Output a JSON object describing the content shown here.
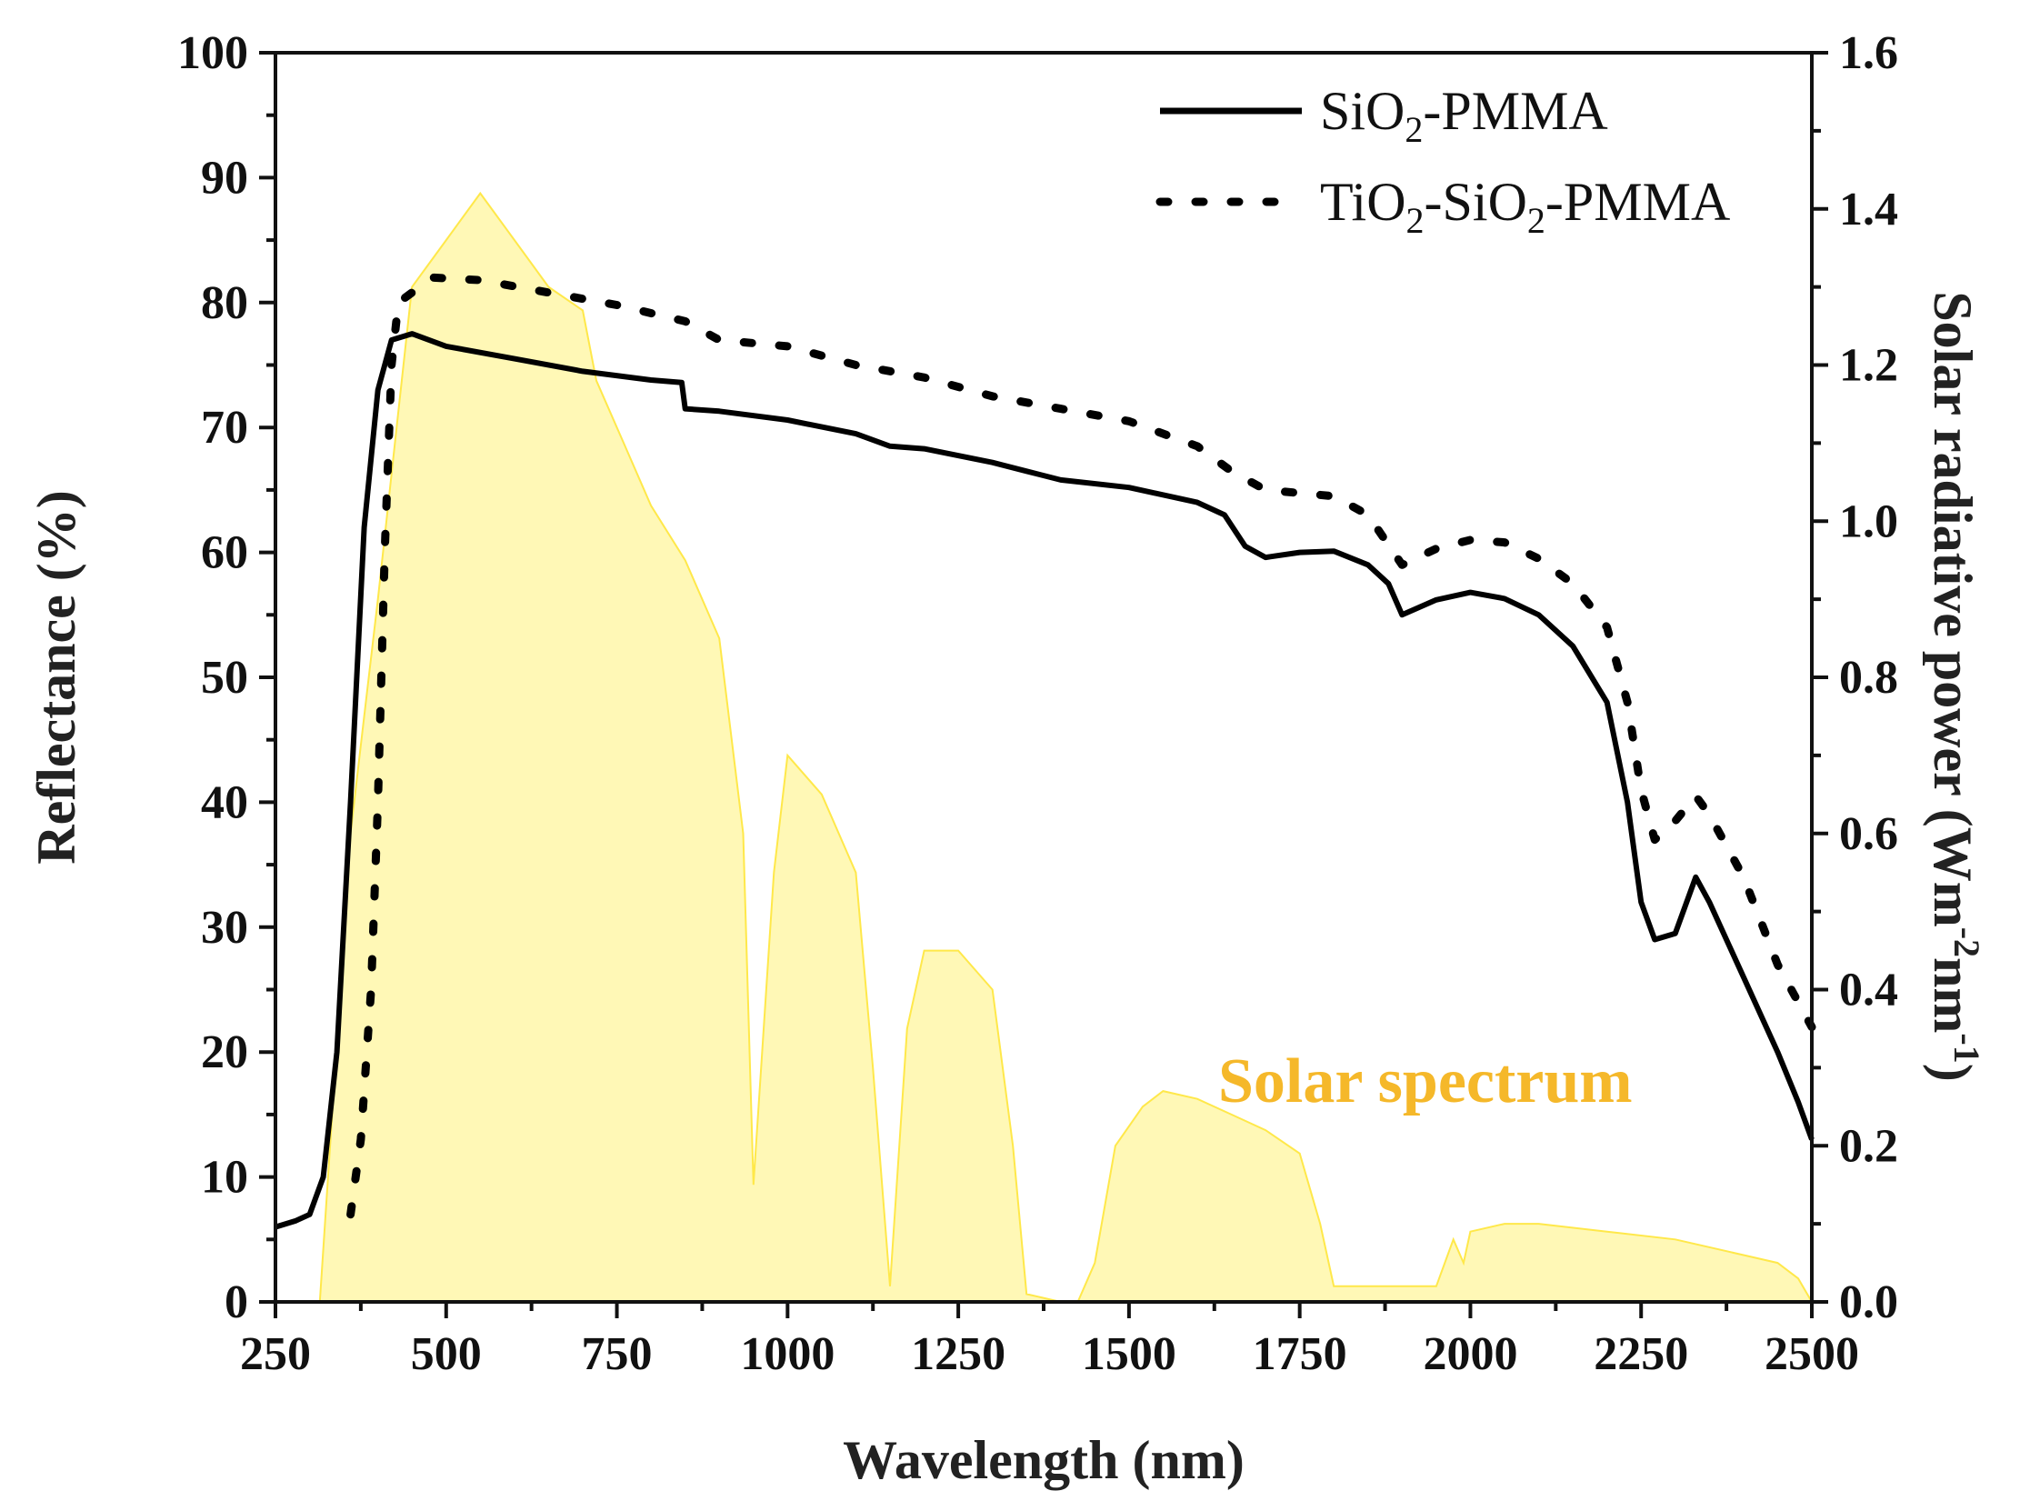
{
  "chart_data": {
    "type": "line",
    "xlabel": "Wavelength (nm)",
    "ylabel": "Reflectance (%)",
    "y2label": "Solar radiative power (Wm-2nm-1)",
    "xlim": [
      250,
      2500
    ],
    "ylim": [
      0,
      100
    ],
    "y2lim": [
      0.0,
      1.6
    ],
    "x_ticks": [
      250,
      500,
      750,
      1000,
      1250,
      1500,
      1750,
      2000,
      2250,
      2500
    ],
    "y_ticks": [
      0,
      10,
      20,
      30,
      40,
      50,
      60,
      70,
      80,
      90,
      100
    ],
    "y2_ticks": [
      "0.0",
      "0.2",
      "0.4",
      "0.6",
      "0.8",
      "1.0",
      "1.2",
      "1.4",
      "1.6"
    ],
    "grid": false,
    "legend_position": "top-right",
    "annotation": "Solar spectrum",
    "series": [
      {
        "name": "SiO2-PMMA",
        "style": "solid",
        "color": "#000000",
        "axis": "left",
        "points": [
          [
            250,
            6
          ],
          [
            280,
            6.5
          ],
          [
            300,
            7
          ],
          [
            320,
            10
          ],
          [
            340,
            20
          ],
          [
            360,
            40
          ],
          [
            380,
            62
          ],
          [
            400,
            73
          ],
          [
            420,
            77
          ],
          [
            450,
            77.5
          ],
          [
            500,
            76.5
          ],
          [
            600,
            75.5
          ],
          [
            700,
            74.5
          ],
          [
            800,
            73.8
          ],
          [
            845,
            73.6
          ],
          [
            850,
            71.5
          ],
          [
            900,
            71.3
          ],
          [
            1000,
            70.6
          ],
          [
            1100,
            69.5
          ],
          [
            1150,
            68.5
          ],
          [
            1200,
            68.3
          ],
          [
            1300,
            67.2
          ],
          [
            1350,
            66.5
          ],
          [
            1400,
            65.8
          ],
          [
            1500,
            65.2
          ],
          [
            1600,
            64
          ],
          [
            1640,
            63
          ],
          [
            1670,
            60.5
          ],
          [
            1700,
            59.6
          ],
          [
            1750,
            60
          ],
          [
            1800,
            60.1
          ],
          [
            1850,
            59
          ],
          [
            1880,
            57.5
          ],
          [
            1900,
            55
          ],
          [
            1950,
            56.2
          ],
          [
            2000,
            56.8
          ],
          [
            2050,
            56.3
          ],
          [
            2100,
            55
          ],
          [
            2150,
            52.5
          ],
          [
            2200,
            48
          ],
          [
            2230,
            40
          ],
          [
            2250,
            32
          ],
          [
            2270,
            29
          ],
          [
            2300,
            29.5
          ],
          [
            2330,
            34
          ],
          [
            2350,
            32
          ],
          [
            2400,
            26
          ],
          [
            2450,
            20
          ],
          [
            2480,
            16
          ],
          [
            2500,
            13
          ]
        ]
      },
      {
        "name": "TiO2-SiO2-PMMA",
        "style": "dotted",
        "color": "#000000",
        "axis": "left",
        "points": [
          [
            360,
            7
          ],
          [
            375,
            13
          ],
          [
            390,
            25
          ],
          [
            400,
            40
          ],
          [
            410,
            60
          ],
          [
            420,
            75
          ],
          [
            430,
            80
          ],
          [
            480,
            82
          ],
          [
            550,
            81.8
          ],
          [
            650,
            80.8
          ],
          [
            750,
            79.8
          ],
          [
            850,
            78.5
          ],
          [
            900,
            77
          ],
          [
            1000,
            76.5
          ],
          [
            1100,
            75
          ],
          [
            1200,
            74
          ],
          [
            1300,
            72.5
          ],
          [
            1400,
            71.5
          ],
          [
            1500,
            70.5
          ],
          [
            1600,
            68.5
          ],
          [
            1650,
            66.5
          ],
          [
            1700,
            65
          ],
          [
            1800,
            64.5
          ],
          [
            1850,
            63
          ],
          [
            1900,
            59
          ],
          [
            1950,
            60.3
          ],
          [
            2000,
            61
          ],
          [
            2050,
            60.8
          ],
          [
            2100,
            59.5
          ],
          [
            2150,
            57.5
          ],
          [
            2200,
            54
          ],
          [
            2230,
            48
          ],
          [
            2250,
            41
          ],
          [
            2270,
            37
          ],
          [
            2300,
            38.5
          ],
          [
            2330,
            40.5
          ],
          [
            2350,
            39
          ],
          [
            2400,
            34
          ],
          [
            2450,
            27
          ],
          [
            2500,
            22
          ]
        ]
      },
      {
        "name": "Solar spectrum",
        "style": "fill",
        "color": "#fff27a",
        "axis": "right",
        "points": [
          [
            300,
            0
          ],
          [
            315,
            0
          ],
          [
            330,
            0.2
          ],
          [
            345,
            0.4
          ],
          [
            360,
            0.6
          ],
          [
            380,
            0.75
          ],
          [
            400,
            0.9
          ],
          [
            425,
            1.1
          ],
          [
            450,
            1.3
          ],
          [
            500,
            1.36
          ],
          [
            550,
            1.42
          ],
          [
            600,
            1.36
          ],
          [
            650,
            1.3
          ],
          [
            700,
            1.27
          ],
          [
            720,
            1.18
          ],
          [
            760,
            1.1
          ],
          [
            800,
            1.02
          ],
          [
            850,
            0.95
          ],
          [
            900,
            0.85
          ],
          [
            935,
            0.6
          ],
          [
            950,
            0.15
          ],
          [
            980,
            0.55
          ],
          [
            1000,
            0.7
          ],
          [
            1050,
            0.65
          ],
          [
            1100,
            0.55
          ],
          [
            1125,
            0.3
          ],
          [
            1150,
            0.02
          ],
          [
            1175,
            0.35
          ],
          [
            1200,
            0.45
          ],
          [
            1250,
            0.45
          ],
          [
            1300,
            0.4
          ],
          [
            1330,
            0.2
          ],
          [
            1350,
            0.01
          ],
          [
            1400,
            0
          ],
          [
            1425,
            0
          ],
          [
            1450,
            0.05
          ],
          [
            1480,
            0.2
          ],
          [
            1520,
            0.25
          ],
          [
            1550,
            0.27
          ],
          [
            1600,
            0.26
          ],
          [
            1650,
            0.24
          ],
          [
            1700,
            0.22
          ],
          [
            1750,
            0.19
          ],
          [
            1780,
            0.1
          ],
          [
            1800,
            0.02
          ],
          [
            1950,
            0.02
          ],
          [
            1975,
            0.08
          ],
          [
            1990,
            0.05
          ],
          [
            2000,
            0.09
          ],
          [
            2050,
            0.1
          ],
          [
            2100,
            0.1
          ],
          [
            2200,
            0.09
          ],
          [
            2300,
            0.08
          ],
          [
            2400,
            0.06
          ],
          [
            2450,
            0.05
          ],
          [
            2480,
            0.03
          ],
          [
            2500,
            0
          ]
        ]
      }
    ]
  }
}
